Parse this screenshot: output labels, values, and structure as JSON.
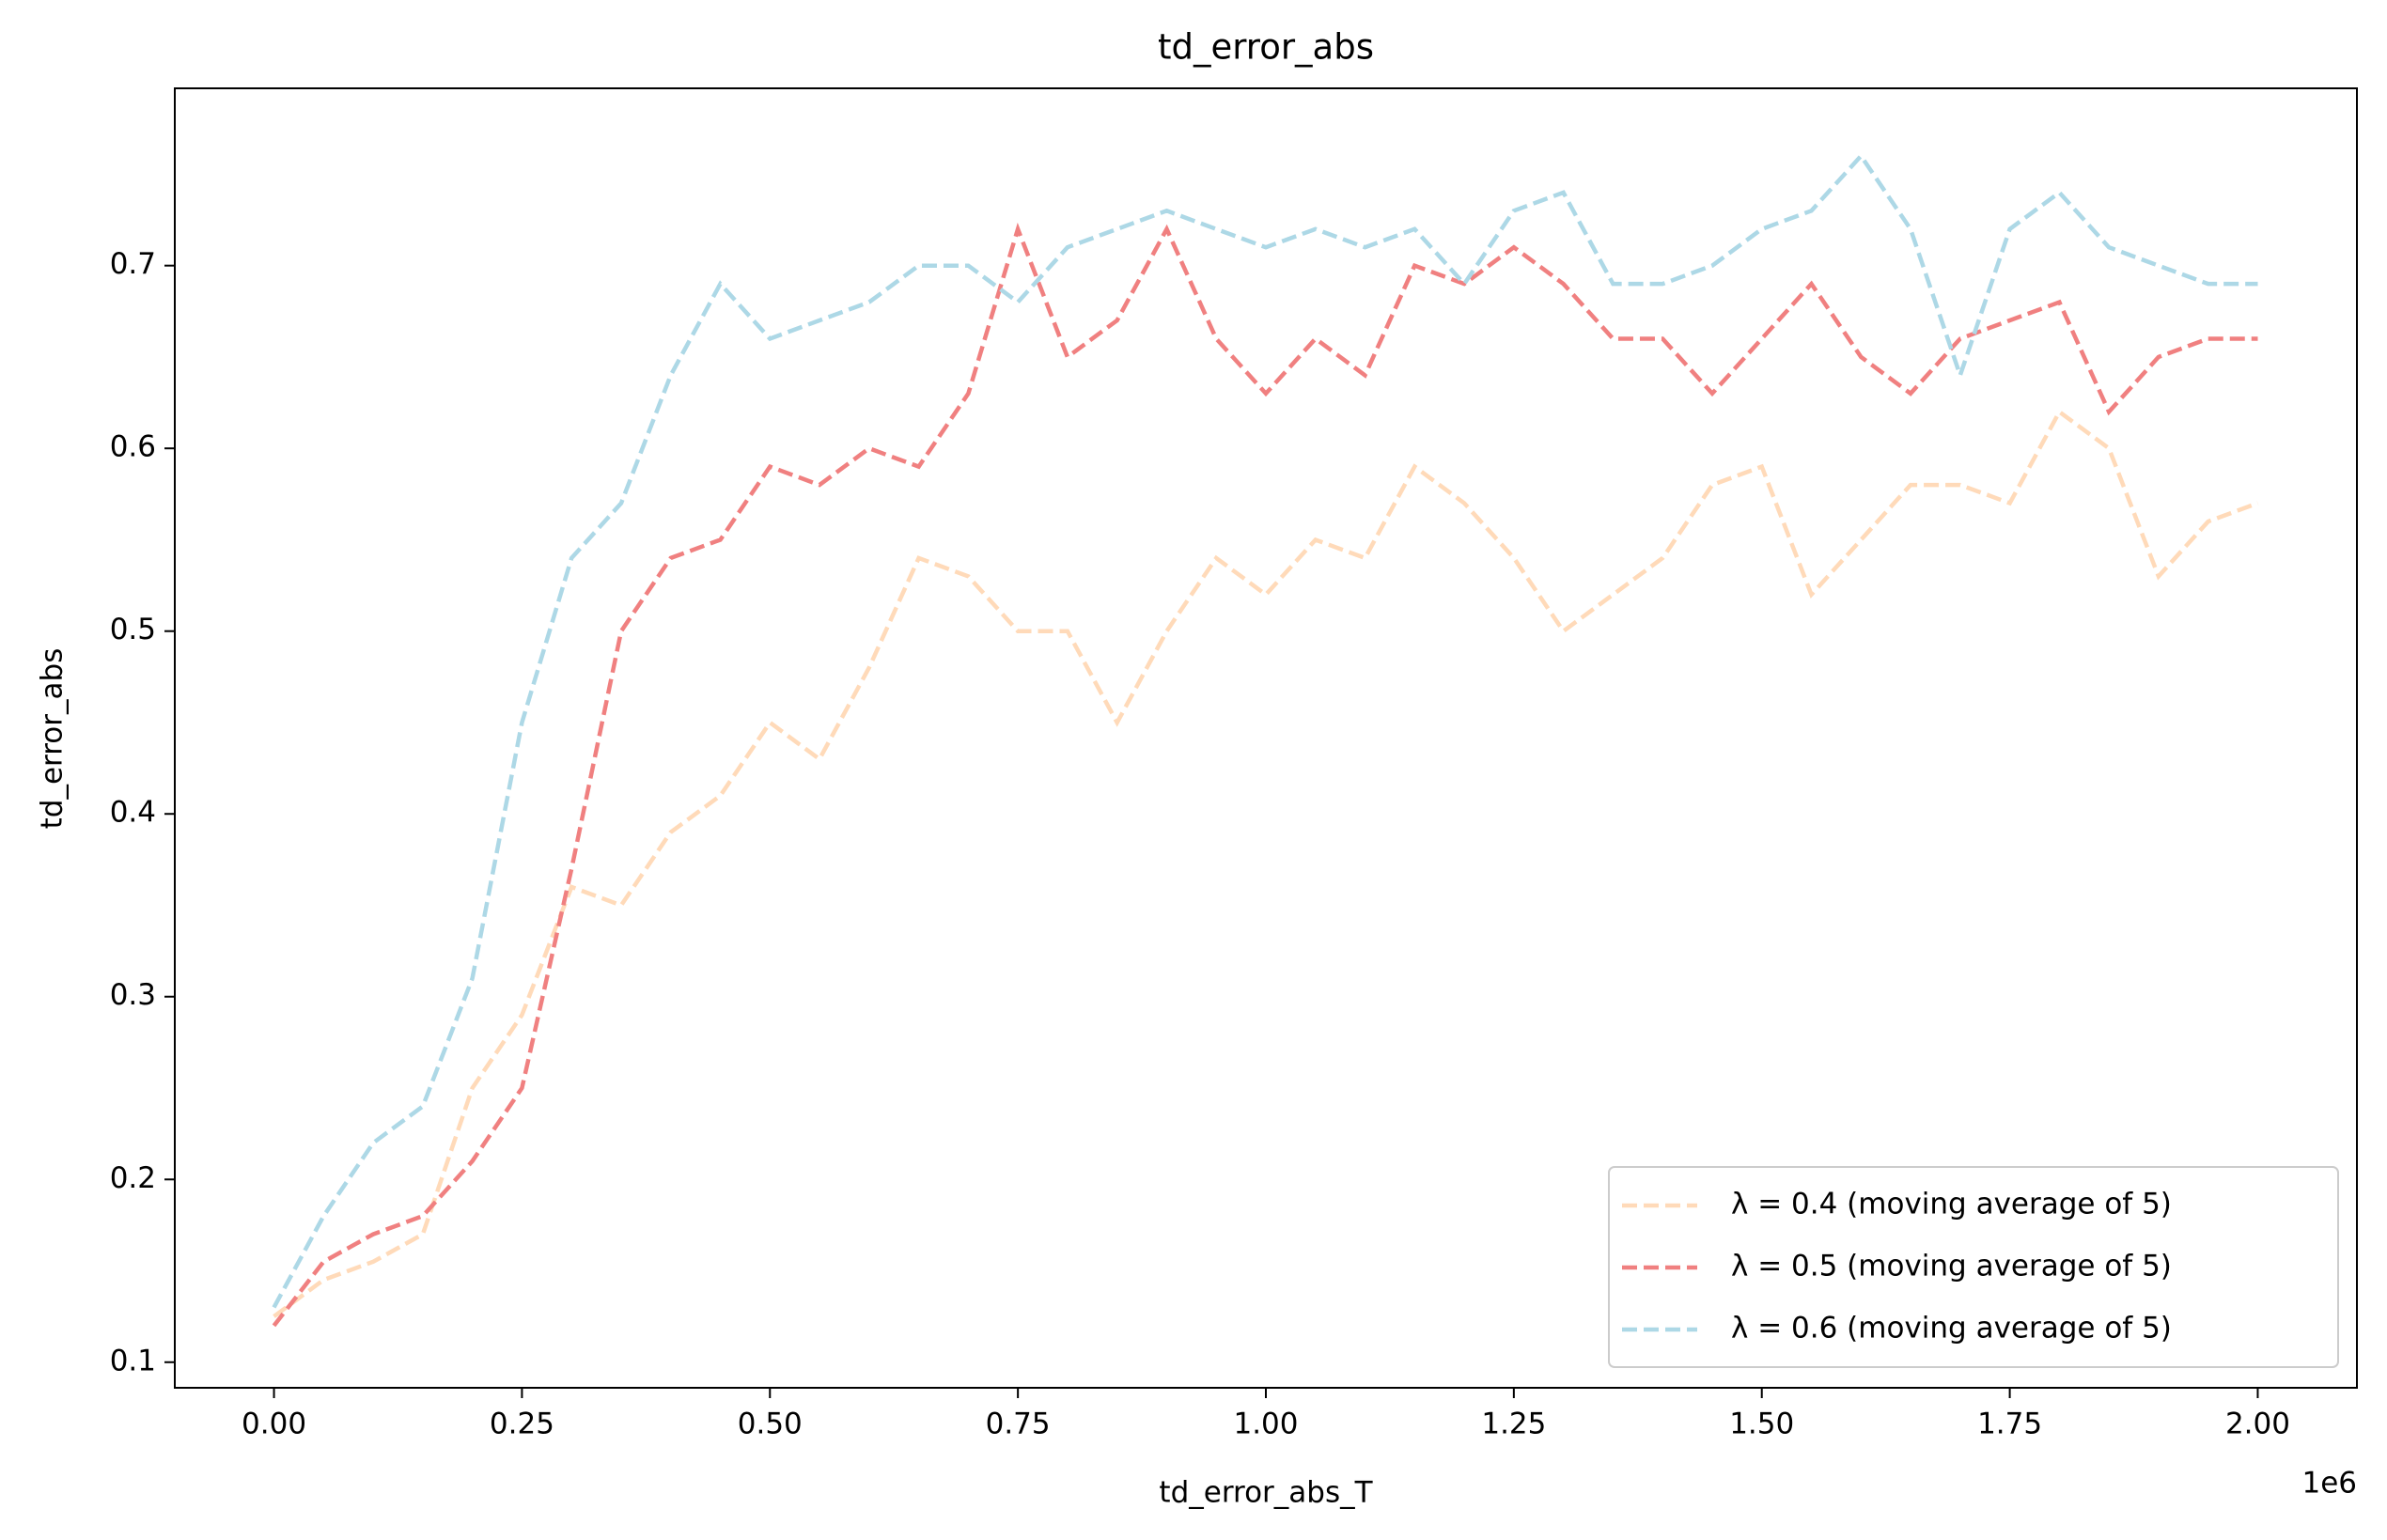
{
  "chart_data": {
    "type": "line",
    "title": "td_error_abs",
    "x_label": "td_error_abs_T",
    "y_label": "td_error_abs",
    "x_offset": "1e6",
    "x": [
      0,
      0.05,
      0.1,
      0.15,
      0.2,
      0.25,
      0.3,
      0.35,
      0.4,
      0.45,
      0.5,
      0.55,
      0.6,
      0.65,
      0.7,
      0.75,
      0.8,
      0.85,
      0.9,
      0.95,
      1.0,
      1.05,
      1.1,
      1.15,
      1.2,
      1.25,
      1.3,
      1.35,
      1.4,
      1.45,
      1.5,
      1.55,
      1.6,
      1.65,
      1.7,
      1.75,
      1.8,
      1.85,
      1.9,
      1.95,
      2.0
    ],
    "series": [
      {
        "name": "λ = 0.4 (moving average of 5)",
        "color": "#ffdab9",
        "values": [
          0.125,
          0.145,
          0.155,
          0.17,
          0.25,
          0.29,
          0.36,
          0.35,
          0.39,
          0.41,
          0.45,
          0.43,
          0.48,
          0.54,
          0.53,
          0.5,
          0.5,
          0.45,
          0.5,
          0.54,
          0.52,
          0.55,
          0.54,
          0.59,
          0.57,
          0.54,
          0.5,
          0.52,
          0.54,
          0.58,
          0.59,
          0.52,
          0.55,
          0.58,
          0.58,
          0.57,
          0.62,
          0.6,
          0.53,
          0.56,
          0.57
        ]
      },
      {
        "name": "λ = 0.5 (moving average of 5)",
        "color": "#f08080",
        "values": [
          0.12,
          0.155,
          0.17,
          0.18,
          0.21,
          0.25,
          0.37,
          0.5,
          0.54,
          0.55,
          0.59,
          0.58,
          0.6,
          0.59,
          0.63,
          0.72,
          0.65,
          0.67,
          0.72,
          0.66,
          0.63,
          0.66,
          0.64,
          0.7,
          0.69,
          0.71,
          0.69,
          0.66,
          0.66,
          0.63,
          0.66,
          0.69,
          0.65,
          0.63,
          0.66,
          0.67,
          0.68,
          0.62,
          0.65,
          0.66,
          0.66
        ]
      },
      {
        "name": "λ = 0.6 (moving average of 5)",
        "color": "#add8e6",
        "values": [
          0.13,
          0.18,
          0.22,
          0.24,
          0.31,
          0.45,
          0.54,
          0.57,
          0.64,
          0.69,
          0.66,
          0.67,
          0.68,
          0.7,
          0.7,
          0.68,
          0.71,
          0.72,
          0.73,
          0.72,
          0.71,
          0.72,
          0.71,
          0.72,
          0.69,
          0.73,
          0.74,
          0.69,
          0.69,
          0.7,
          0.72,
          0.73,
          0.76,
          0.72,
          0.64,
          0.72,
          0.74,
          0.71,
          0.7,
          0.69,
          0.69
        ]
      }
    ],
    "xlim": [
      -0.1,
      2.1
    ],
    "ylim": [
      0.086,
      0.797
    ],
    "xticks": [
      {
        "value": 0,
        "label": "0.00"
      },
      0.25,
      {
        "value": 0.5,
        "label": "0.50"
      },
      0.75,
      {
        "value": 1,
        "label": "1.00"
      },
      1.25,
      {
        "value": 1.5,
        "label": "1.50"
      },
      1.75,
      {
        "value": 2,
        "label": "2.00"
      }
    ],
    "yticks": [
      0.1,
      0.2,
      0.3,
      0.4,
      0.5,
      0.6,
      0.7
    ],
    "legend": "lower right",
    "grid": false
  }
}
